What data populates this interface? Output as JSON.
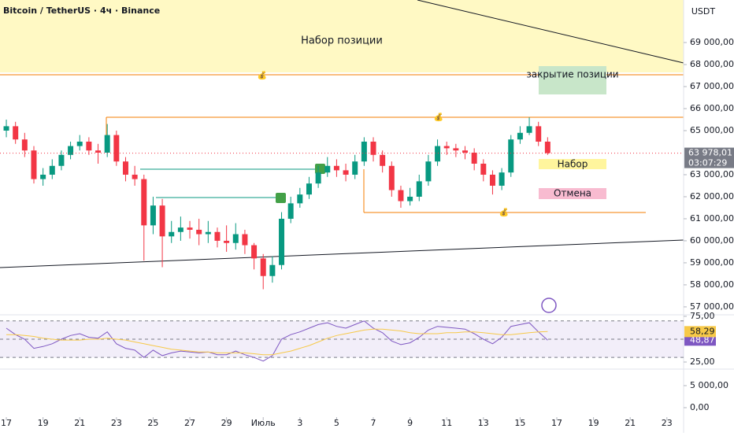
{
  "chart_data": {
    "type": "candlestick",
    "title": "Bitcoin / TetherUS · 4ч · Binance",
    "currency": "USDT",
    "zone_label": "Набор позиции",
    "box_labels": [
      "закрытие позиции",
      "Набор",
      "Отмена"
    ],
    "countdown": "03:07:29",
    "up_color": "#089981",
    "down_color": "#f23645",
    "xlim": [
      -0.69,
      73.82
    ],
    "xticks": [
      {
        "value": 0,
        "label": "17"
      },
      {
        "value": 4,
        "label": "19"
      },
      {
        "value": 8,
        "label": "21"
      },
      {
        "value": 12,
        "label": "23"
      },
      {
        "value": 16,
        "label": "25"
      },
      {
        "value": 20,
        "label": "27"
      },
      {
        "value": 24,
        "label": "29"
      },
      {
        "value": 28,
        "label": "Июль"
      },
      {
        "value": 32,
        "label": "3"
      },
      {
        "value": 36,
        "label": "5"
      },
      {
        "value": 40,
        "label": "7"
      },
      {
        "value": 44,
        "label": "9"
      },
      {
        "value": 48,
        "label": "11"
      },
      {
        "value": 52,
        "label": "13"
      },
      {
        "value": 56,
        "label": "15"
      },
      {
        "value": 60,
        "label": "17"
      },
      {
        "value": 64,
        "label": "19"
      },
      {
        "value": 68,
        "label": "21"
      },
      {
        "value": 72,
        "label": "23"
      }
    ],
    "ylim": [
      56640,
      70930
    ],
    "yticks": [
      {
        "value": 69000,
        "label": "69 000,00"
      },
      {
        "value": 68000,
        "label": "68 000,00"
      },
      {
        "value": 67000,
        "label": "67 000,00"
      },
      {
        "value": 66000,
        "label": "66 000,00"
      },
      {
        "value": 65000,
        "label": "65 000,00"
      },
      {
        "value": 63000,
        "label": "63 000,00"
      },
      {
        "value": 62000,
        "label": "62 000,00"
      },
      {
        "value": 61000,
        "label": "61 000,00"
      },
      {
        "value": 60000,
        "label": "60 000,00"
      },
      {
        "value": 59000,
        "label": "59 000,00"
      },
      {
        "value": 58000,
        "label": "58 000,00"
      },
      {
        "value": 57000,
        "label": "57 000,00"
      }
    ],
    "last_price": {
      "value": 63978.01,
      "label": "63 978,01"
    },
    "open": [
      65000,
      65200,
      64600,
      64100,
      62800,
      63000,
      63400,
      63900,
      64300,
      64500,
      64100,
      64000,
      64800,
      63600,
      63000,
      62800,
      60700,
      61600,
      60200,
      60400,
      60600,
      60500,
      60300,
      60400,
      60000,
      59900,
      60300,
      59800,
      59200,
      58400,
      58900,
      61000,
      61700,
      62100,
      62600,
      63100,
      63400,
      63200,
      63000,
      63600,
      64500,
      63900,
      63400,
      62300,
      61800,
      62000,
      62700,
      63600,
      64300,
      64200,
      64100,
      64000,
      63500,
      63000,
      62500,
      63100,
      64600,
      64900,
      65200,
      64500
    ],
    "high": [
      65500,
      65400,
      64900,
      64300,
      63300,
      63700,
      64100,
      64500,
      64800,
      64700,
      64400,
      65300,
      65000,
      63800,
      63400,
      63000,
      62000,
      61900,
      60900,
      61100,
      60900,
      61000,
      60900,
      60600,
      60700,
      60800,
      60500,
      59900,
      59400,
      59300,
      61300,
      62000,
      62400,
      62900,
      63400,
      63800,
      63700,
      63500,
      63900,
      64700,
      64700,
      64100,
      63600,
      62500,
      62400,
      63000,
      63900,
      64600,
      64500,
      64400,
      64300,
      64200,
      63700,
      63200,
      63300,
      64800,
      65200,
      65600,
      65400,
      64700
    ],
    "low": [
      64700,
      64400,
      63800,
      62600,
      62500,
      62800,
      63200,
      63700,
      64100,
      63900,
      63500,
      63800,
      63400,
      62700,
      62500,
      59100,
      60300,
      58800,
      59900,
      60000,
      60100,
      59800,
      59900,
      59700,
      59500,
      59600,
      59400,
      58700,
      57800,
      58100,
      58700,
      60800,
      61500,
      61900,
      62400,
      62900,
      62900,
      62700,
      62800,
      63400,
      63600,
      63100,
      62000,
      61500,
      61600,
      61800,
      62500,
      63400,
      63900,
      63800,
      63700,
      63200,
      62700,
      62100,
      62300,
      62900,
      64400,
      64800,
      64300,
      63900
    ],
    "close": [
      65200,
      64600,
      64100,
      62800,
      63000,
      63400,
      63900,
      64300,
      64500,
      64100,
      64000,
      64800,
      63600,
      63000,
      62800,
      60700,
      61600,
      60200,
      60400,
      60600,
      60500,
      60300,
      60400,
      60000,
      59900,
      60300,
      59800,
      59200,
      58400,
      58900,
      61000,
      61700,
      62100,
      62600,
      63100,
      63400,
      63200,
      63000,
      63600,
      64500,
      63900,
      63400,
      62300,
      61800,
      62000,
      62700,
      63600,
      64300,
      64200,
      64100,
      64000,
      63500,
      63000,
      62500,
      63100,
      64600,
      64900,
      65200,
      64500,
      63978.01
    ],
    "rsi": {
      "ylim": [
        18.1,
        78.4
      ],
      "yticks": [
        {
          "value": 75,
          "label": "75,00"
        },
        {
          "value": 25,
          "label": "25,00"
        }
      ],
      "levels": [
        70,
        50,
        30
      ],
      "series": [
        {
          "color": "#7e57c2",
          "values": [
            62,
            55,
            50,
            40,
            42,
            45,
            50,
            54,
            56,
            52,
            51,
            58,
            45,
            40,
            38,
            30,
            38,
            32,
            35,
            37,
            36,
            35,
            36,
            33,
            33,
            37,
            33,
            30,
            26,
            32,
            50,
            55,
            58,
            62,
            66,
            68,
            64,
            62,
            66,
            70,
            62,
            57,
            48,
            44,
            46,
            52,
            60,
            64,
            63,
            62,
            61,
            56,
            50,
            45,
            52,
            64,
            66,
            68,
            58,
            48.87
          ],
          "last_label": "48,87"
        },
        {
          "color": "#f7c948",
          "values": [
            55,
            55,
            54,
            53,
            51,
            50,
            49,
            49,
            49,
            50,
            50,
            51,
            50,
            49,
            47,
            45,
            43,
            41,
            39,
            38,
            37,
            36,
            36,
            35,
            35,
            35,
            35,
            34,
            33,
            33,
            35,
            37,
            40,
            43,
            47,
            51,
            54,
            56,
            58,
            60,
            61,
            61,
            60,
            59,
            57,
            56,
            56,
            56,
            57,
            57,
            58,
            58,
            57,
            56,
            55,
            55,
            56,
            57,
            58,
            58.29
          ],
          "last_label": "58,29"
        }
      ]
    },
    "volume_pane": {
      "ylim": [
        -2143,
        8571
      ],
      "yticks": [
        {
          "value": 5000,
          "label": "5 000,00"
        },
        {
          "value": 0,
          "label": "0,00"
        }
      ]
    }
  }
}
